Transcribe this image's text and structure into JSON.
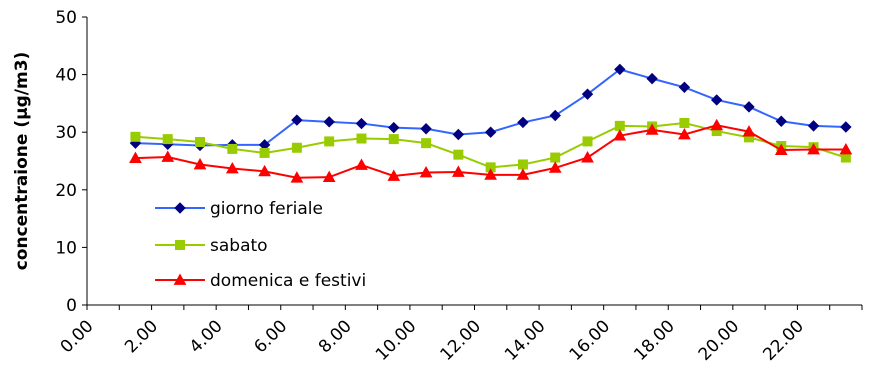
{
  "chart_data": {
    "type": "line",
    "ylabel": "concentraione (µg/m3)",
    "xlabel": "",
    "ylim": [
      0,
      50
    ],
    "yticks": [
      "0",
      "10",
      "20",
      "30",
      "40",
      "50"
    ],
    "x_tick_labels": [
      "0.00",
      "2.00",
      "4.00",
      "6.00",
      "8.00",
      "10.00",
      "12.00",
      "14.00",
      "16.00",
      "18.00",
      "20.00",
      "22.00"
    ],
    "x": [
      1,
      2,
      3,
      4,
      5,
      6,
      7,
      8,
      9,
      10,
      11,
      12,
      13,
      14,
      15,
      16,
      17,
      18,
      19,
      20,
      21,
      22,
      23
    ],
    "legend_position": "left",
    "series": [
      {
        "name": "giorno feriale",
        "color": "#3366ff",
        "marker": "diamond",
        "values": [
          28.1,
          27.9,
          27.7,
          27.8,
          27.8,
          32.1,
          31.8,
          31.5,
          30.8,
          30.6,
          29.6,
          30.0,
          31.7,
          32.9,
          36.6,
          40.9,
          39.3,
          37.8,
          35.6,
          34.4,
          31.9,
          31.1,
          30.9
        ]
      },
      {
        "name": "sabato",
        "color": "#99cc00",
        "marker": "square",
        "values": [
          29.2,
          28.8,
          28.3,
          27.1,
          26.4,
          27.3,
          28.4,
          28.9,
          28.8,
          28.1,
          26.1,
          23.9,
          24.4,
          25.6,
          28.4,
          31.1,
          31.0,
          31.6,
          30.2,
          29.1,
          27.6,
          27.4,
          25.6
        ]
      },
      {
        "name": "domenica e festivi",
        "color": "#ff0000",
        "marker": "triangle",
        "values": [
          25.5,
          25.7,
          24.4,
          23.7,
          23.2,
          22.1,
          22.2,
          24.3,
          22.4,
          23.0,
          23.1,
          22.6,
          22.6,
          23.8,
          25.6,
          29.4,
          30.4,
          29.6,
          31.2,
          30.1,
          26.9,
          27.0,
          27.0
        ]
      }
    ]
  }
}
